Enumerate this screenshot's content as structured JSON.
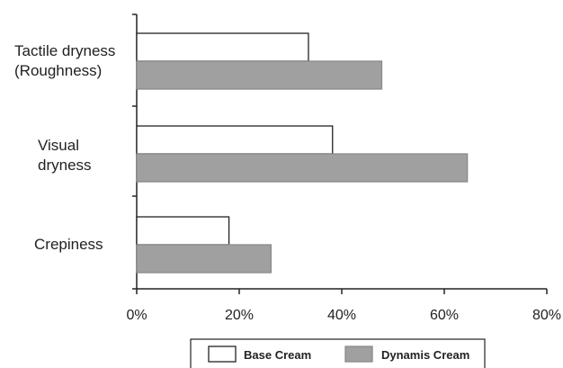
{
  "chart_data": {
    "type": "bar",
    "orientation": "horizontal",
    "categories": [
      [
        "Tactile dryness",
        "(Roughness)"
      ],
      [
        "Visual",
        "dryness"
      ],
      [
        "Crepiness"
      ]
    ],
    "series": [
      {
        "name": "Base Cream",
        "values": [
          33.5,
          38.2,
          18.0
        ],
        "color": "#ffffff",
        "stroke": "#222222"
      },
      {
        "name": "Dynamis Cream",
        "values": [
          47.8,
          64.5,
          26.2
        ],
        "color": "#a0a0a0",
        "stroke": "#8a8a8a"
      }
    ],
    "xlim": [
      0,
      80
    ],
    "xticks": [
      "0%",
      "20%",
      "40%",
      "60%",
      "80%"
    ],
    "legend_position": "bottom",
    "grid": false
  }
}
